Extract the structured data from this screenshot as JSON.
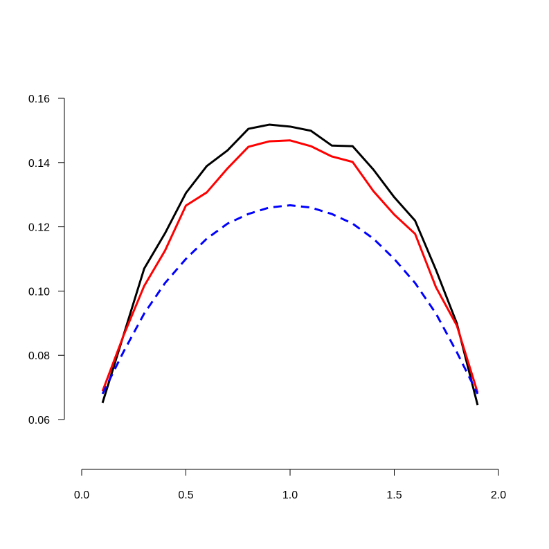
{
  "chart_data": {
    "type": "line",
    "title": "",
    "xlabel": "",
    "ylabel": "",
    "xlim": [
      0.0,
      2.0
    ],
    "ylim": [
      0.06,
      0.16
    ],
    "grid": false,
    "x_ticks": [
      "0.0",
      "0.5",
      "1.0",
      "1.5",
      "2.0"
    ],
    "y_ticks": [
      "0.06",
      "0.08",
      "0.10",
      "0.12",
      "0.14",
      "0.16"
    ],
    "x": [
      0.1,
      0.2,
      0.3,
      0.4,
      0.5,
      0.6,
      0.7,
      0.8,
      0.9,
      1.0,
      1.1,
      1.2,
      1.3,
      1.4,
      1.5,
      1.6,
      1.7,
      1.8,
      1.9
    ],
    "series": [
      {
        "color": "#000000",
        "style": "solid",
        "values": [
          0.0652,
          0.0861,
          0.107,
          0.118,
          0.1305,
          0.1389,
          0.1438,
          0.1505,
          0.1518,
          0.1512,
          0.1499,
          0.1453,
          0.1451,
          0.1378,
          0.1292,
          0.1219,
          0.1066,
          0.09,
          0.0645
        ]
      },
      {
        "color": "#ff0000",
        "style": "solid",
        "values": [
          0.0688,
          0.086,
          0.1016,
          0.1126,
          0.1266,
          0.1307,
          0.1382,
          0.1449,
          0.1466,
          0.1469,
          0.1451,
          0.1419,
          0.1402,
          0.1311,
          0.1238,
          0.1178,
          0.1012,
          0.0893,
          0.0684
        ]
      },
      {
        "color": "#0000ff",
        "style": "dashed",
        "values": [
          0.068,
          0.081,
          0.093,
          0.1025,
          0.11,
          0.1163,
          0.121,
          0.124,
          0.126,
          0.1267,
          0.126,
          0.124,
          0.121,
          0.1163,
          0.11,
          0.1025,
          0.093,
          0.081,
          0.068
        ]
      }
    ]
  }
}
